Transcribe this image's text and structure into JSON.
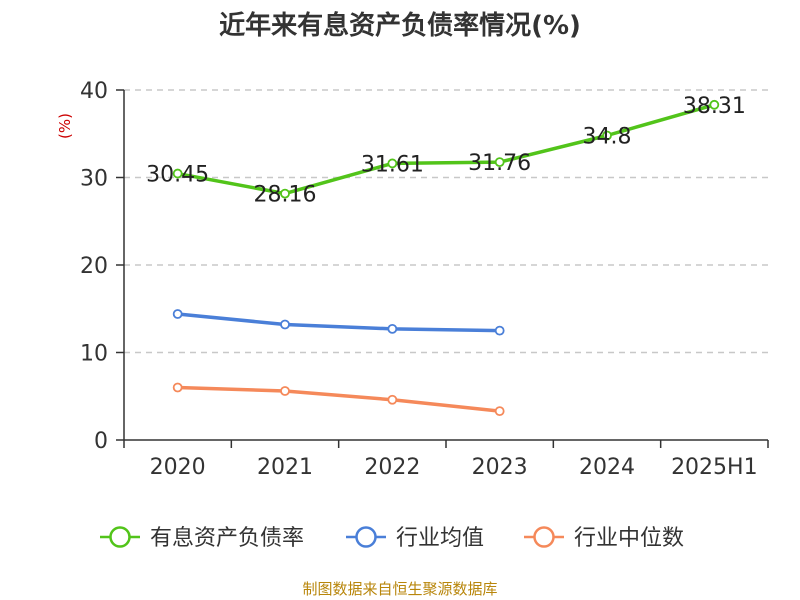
{
  "chart_data": {
    "type": "line",
    "title": "近年来有息资产负债率情况(%)",
    "ylabel": "(%)",
    "xlabel": "",
    "categories": [
      "2020",
      "2021",
      "2022",
      "2023",
      "2024",
      "2025H1"
    ],
    "ylim": [
      0,
      40
    ],
    "yticks": [
      0,
      10,
      20,
      30,
      40
    ],
    "grid": true,
    "legend_position": "bottom",
    "series": [
      {
        "name": "有息资产负债率",
        "color": "#52c41a",
        "values": [
          30.45,
          28.16,
          31.61,
          31.76,
          34.8,
          38.31
        ],
        "labels": [
          "30.45",
          "28.16",
          "31.61",
          "31.76",
          "34.8",
          "38.31"
        ]
      },
      {
        "name": "行业均值",
        "color": "#4a7fd8",
        "values": [
          14.4,
          13.2,
          12.7,
          12.5,
          null,
          null
        ]
      },
      {
        "name": "行业中位数",
        "color": "#f5895a",
        "values": [
          6.0,
          5.6,
          4.6,
          3.3,
          null,
          null
        ]
      }
    ],
    "source": "制图数据来自恒生聚源数据库"
  }
}
